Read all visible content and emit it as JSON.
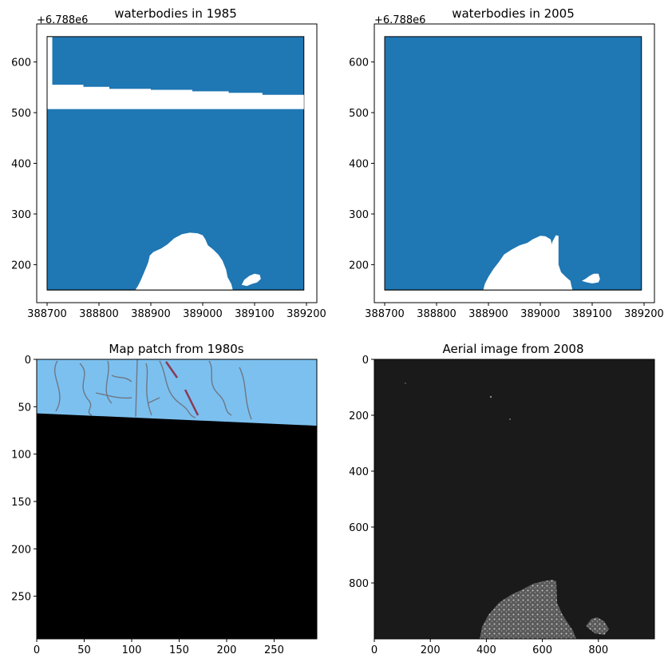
{
  "colors": {
    "water": "#1f77b4",
    "land": "#ffffff",
    "map_water": "#7cc0ef",
    "aerial_bg": "#1a1a1a",
    "nodata": "#000000"
  },
  "chart_data": [
    {
      "type": "map",
      "title": "waterbodies in 1985",
      "offset_label": "+6.788e6",
      "xlim": [
        388680,
        389220
      ],
      "ylim": [
        125,
        675
      ],
      "xticks": [
        388700,
        388800,
        388900,
        389000,
        389100,
        389200
      ],
      "yticks": [
        200,
        300,
        400,
        500,
        600
      ],
      "water_extent": {
        "x": [
          388700,
          389195
        ],
        "y": [
          150,
          650
        ]
      },
      "land_strip_top_edge": [
        [
          388700,
          650
        ],
        [
          388710,
          650
        ],
        [
          388710,
          555
        ],
        [
          388770,
          555
        ],
        [
          388770,
          551
        ],
        [
          388820,
          551
        ],
        [
          388820,
          547
        ],
        [
          388900,
          547
        ],
        [
          388900,
          545
        ],
        [
          388980,
          545
        ],
        [
          388980,
          542
        ],
        [
          389050,
          542
        ],
        [
          389050,
          539
        ],
        [
          389115,
          539
        ],
        [
          389115,
          535
        ],
        [
          389195,
          535
        ]
      ],
      "land_strip_bottom": 507,
      "island_outline": [
        [
          388870,
          150
        ],
        [
          388875,
          158
        ],
        [
          388880,
          168
        ],
        [
          388885,
          180
        ],
        [
          388890,
          192
        ],
        [
          388895,
          205
        ],
        [
          388898,
          218
        ],
        [
          388905,
          225
        ],
        [
          388920,
          232
        ],
        [
          388932,
          240
        ],
        [
          388945,
          252
        ],
        [
          388960,
          260
        ],
        [
          388975,
          263
        ],
        [
          388990,
          262
        ],
        [
          389000,
          258
        ],
        [
          389005,
          250
        ],
        [
          389010,
          238
        ],
        [
          389020,
          230
        ],
        [
          389030,
          220
        ],
        [
          389038,
          208
        ],
        [
          389045,
          190
        ],
        [
          389048,
          175
        ],
        [
          389055,
          162
        ],
        [
          389058,
          150
        ]
      ],
      "small_island_outline": [
        [
          389075,
          160
        ],
        [
          389080,
          170
        ],
        [
          389090,
          178
        ],
        [
          389100,
          182
        ],
        [
          389110,
          180
        ],
        [
          389112,
          172
        ],
        [
          389105,
          165
        ],
        [
          389095,
          162
        ],
        [
          389085,
          158
        ]
      ]
    },
    {
      "type": "map",
      "title": "waterbodies in 2005",
      "offset_label": "+6.788e6",
      "xlim": [
        388680,
        389220
      ],
      "ylim": [
        125,
        675
      ],
      "xticks": [
        388700,
        388800,
        388900,
        389000,
        389100,
        389200
      ],
      "yticks": [
        200,
        300,
        400,
        500,
        600
      ],
      "water_extent": {
        "x": [
          388700,
          389195
        ],
        "y": [
          150,
          650
        ]
      },
      "island_outline": [
        [
          388890,
          150
        ],
        [
          388893,
          162
        ],
        [
          388900,
          176
        ],
        [
          388910,
          192
        ],
        [
          388920,
          205
        ],
        [
          388930,
          220
        ],
        [
          388945,
          230
        ],
        [
          388960,
          238
        ],
        [
          388975,
          243
        ],
        [
          388985,
          250
        ],
        [
          389000,
          257
        ],
        [
          389010,
          256
        ],
        [
          389020,
          250
        ],
        [
          389022,
          240
        ],
        [
          389023,
          245
        ],
        [
          389030,
          258
        ],
        [
          389035,
          257
        ],
        [
          389035,
          235
        ],
        [
          389035,
          200
        ],
        [
          389040,
          185
        ],
        [
          389050,
          175
        ],
        [
          389058,
          168
        ],
        [
          389060,
          158
        ],
        [
          389062,
          150
        ]
      ],
      "small_island_outline": [
        [
          389080,
          168
        ],
        [
          389087,
          172
        ],
        [
          389095,
          178
        ],
        [
          389103,
          182
        ],
        [
          389112,
          182
        ],
        [
          389115,
          172
        ],
        [
          389112,
          165
        ],
        [
          389100,
          163
        ],
        [
          389090,
          165
        ]
      ]
    },
    {
      "type": "image",
      "title": "Map patch from 1980s",
      "xlim": [
        0,
        295
      ],
      "ylim": [
        295,
        0
      ],
      "xticks": [
        0,
        50,
        100,
        150,
        200,
        250
      ],
      "yticks": [
        0,
        50,
        100,
        150,
        200,
        250
      ],
      "nodata_boundary_left": 57,
      "nodata_boundary_right": 70
    },
    {
      "type": "image",
      "title": "Aerial image from 2008",
      "xlim": [
        0,
        1000
      ],
      "ylim": [
        1000,
        0
      ],
      "xticks": [
        0,
        200,
        400,
        600,
        800
      ],
      "yticks": [
        0,
        200,
        400,
        600,
        800
      ]
    }
  ]
}
